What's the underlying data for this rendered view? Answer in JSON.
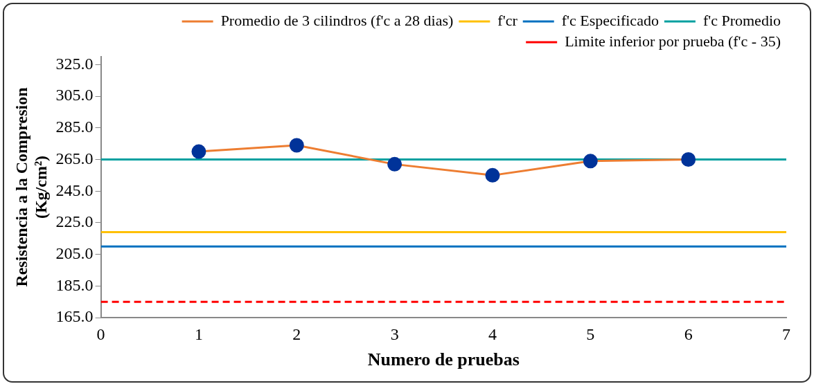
{
  "chart_data": {
    "type": "line",
    "xlabel": "Numero de pruebas",
    "ylabel": "Resistencia a la Compresion (Kg/cm²)",
    "xlim": [
      0,
      7
    ],
    "xticks": [
      0,
      1,
      2,
      3,
      4,
      5,
      6,
      7
    ],
    "ylim": [
      165,
      330
    ],
    "yticks": [
      {
        "value": 165,
        "label": "165.0"
      },
      {
        "value": 185,
        "label": "185.0"
      },
      {
        "value": 205,
        "label": "205.0"
      },
      {
        "value": 225,
        "label": "225.0"
      },
      {
        "value": 245,
        "label": "245.0"
      },
      {
        "value": 265,
        "label": "265.0"
      },
      {
        "value": 285,
        "label": "285.0"
      },
      {
        "value": 305,
        "label": "305.0"
      },
      {
        "value": 325,
        "label": "325.0"
      }
    ],
    "grid": false,
    "legend": "top",
    "series": [
      {
        "name": "Promedio de 3 cilindros (f'c a 28 dias)",
        "color": "#ed7d31",
        "colors": [
          "#003399",
          "#003399",
          "#003399",
          "#003399",
          "#003399",
          "#003399"
        ],
        "marker": "circle",
        "line_style": "solid",
        "x": [
          1,
          2,
          3,
          4,
          5,
          6
        ],
        "values": [
          270,
          274,
          262,
          255,
          264,
          265
        ]
      },
      {
        "name": "f'cr",
        "color": "#ffc000",
        "marker": "none",
        "line_style": "solid",
        "x": [
          0,
          7
        ],
        "values": [
          219,
          219
        ]
      },
      {
        "name": "f'c Especificado",
        "color": "#0070c0",
        "marker": "none",
        "line_style": "solid",
        "x": [
          0,
          7
        ],
        "values": [
          210,
          210
        ]
      },
      {
        "name": "f'c Promedio",
        "color": "#00a0a0",
        "marker": "none",
        "line_style": "solid",
        "x": [
          0,
          7
        ],
        "values": [
          265,
          265
        ]
      },
      {
        "name": "Limite inferior por prueba (f'c - 35)",
        "color": "#ff0000",
        "marker": "none",
        "line_style": "dashed",
        "x": [
          0,
          7
        ],
        "values": [
          175,
          175
        ]
      }
    ]
  }
}
